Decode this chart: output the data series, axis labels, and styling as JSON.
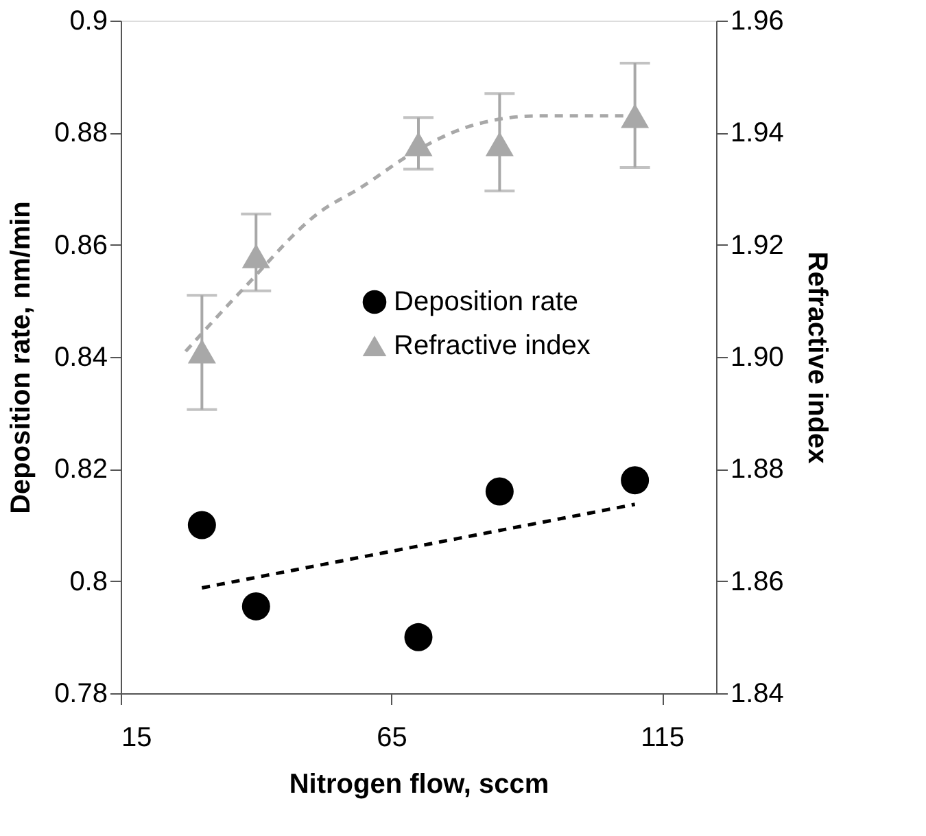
{
  "chart_data": {
    "type": "scatter",
    "xlabel": "Nitrogen flow, sccm",
    "ylabel": "Deposition rate, nm/min",
    "y2label": "Refractive index",
    "xlim": [
      15,
      125
    ],
    "xticks": [
      15,
      65,
      115
    ],
    "ylim": [
      0.78,
      0.9
    ],
    "yticks": [
      0.78,
      0.8,
      0.82,
      0.84,
      0.86,
      0.88,
      0.9
    ],
    "y2lim": [
      1.84,
      1.96
    ],
    "y2ticks": [
      1.84,
      1.86,
      1.88,
      {
        "value": 1.9,
        "label": "1.90"
      },
      1.92,
      1.94,
      1.96
    ],
    "grid": false,
    "legend": "right",
    "series": [
      {
        "name": "Deposition rate",
        "marker": "circle",
        "color": "#000000",
        "x": [
          30,
          40,
          70,
          85,
          110
        ],
        "values": [
          0.81,
          0.7955,
          0.79,
          0.816,
          0.818
        ]
      },
      {
        "name": "Refractive index",
        "marker": "triangle",
        "axis": "y2",
        "color": "#a8a8a8",
        "x": [
          30,
          40,
          70,
          85,
          110
        ],
        "values": [
          1.901,
          1.918,
          1.938,
          1.938,
          1.943
        ],
        "errors": [
          [
            1.8906,
            1.911
          ],
          [
            1.9118,
            1.9255
          ],
          [
            1.9335,
            1.9427
          ],
          [
            1.9296,
            1.947
          ],
          [
            1.9338,
            1.9524
          ]
        ]
      },
      {
        "type": "line",
        "line_style": "dashed",
        "color": "#000000",
        "x": [
          30,
          110
        ],
        "values": [
          0.7988,
          0.8137
        ]
      },
      {
        "type": "line",
        "line_style": "dashed",
        "axis": "y2",
        "color": "#a8a8a8",
        "x": [
          27,
          37.5,
          52,
          59,
          70,
          79,
          92,
          109
        ],
        "values": [
          1.901,
          1.912,
          1.926,
          1.93,
          1.937,
          1.941,
          1.943,
          1.943
        ]
      }
    ]
  }
}
